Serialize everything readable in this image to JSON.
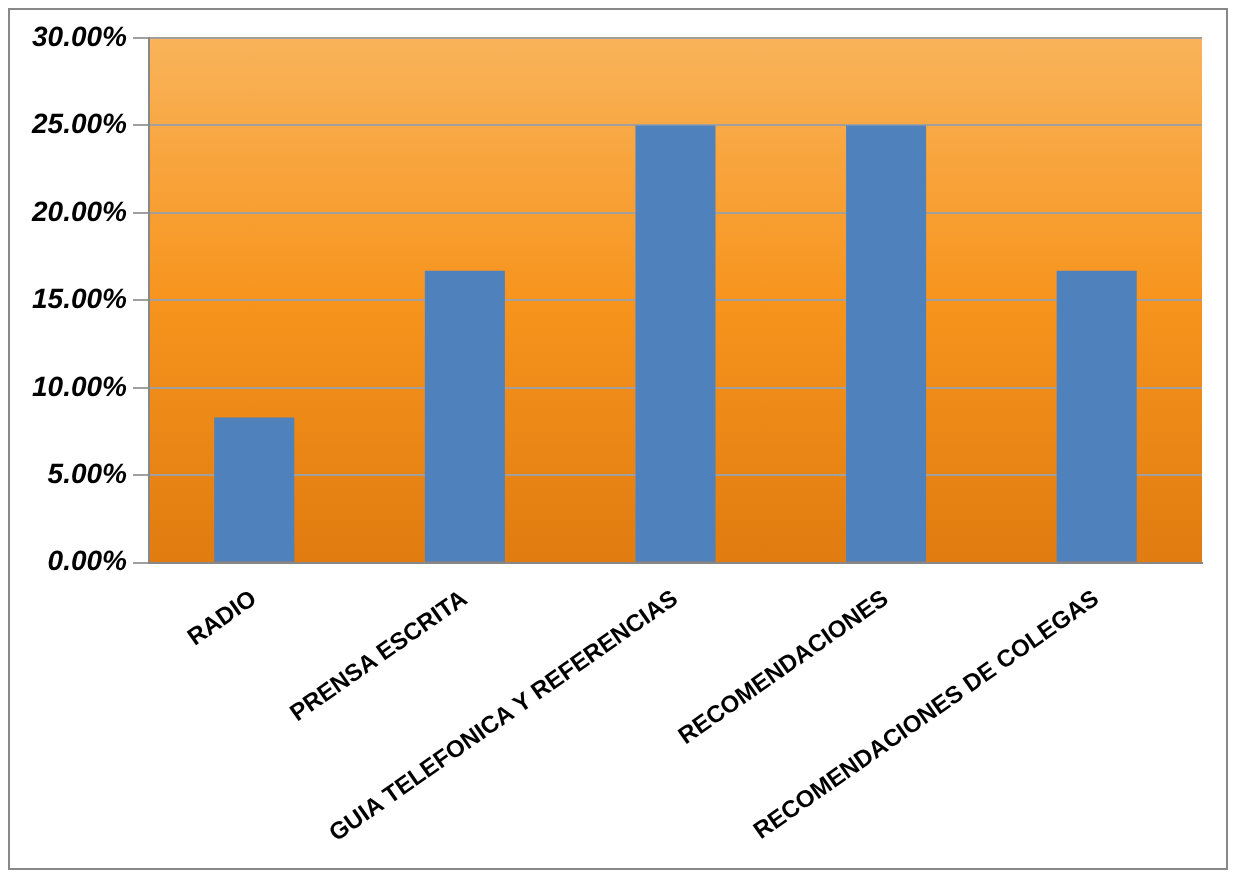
{
  "chart_data": {
    "type": "bar",
    "categories": [
      "RADIO",
      "PRENSA ESCRITA",
      "GUIA TELEFONICA Y REFERENCIAS",
      "RECOMENDACIONES",
      "RECOMENDACIONES DE COLEGAS"
    ],
    "values": [
      8.3,
      16.7,
      25,
      25,
      16.7
    ],
    "color": "#4f81bd",
    "ylim": [
      0,
      30
    ],
    "yticks": [
      {
        "value": 0,
        "label": "0.00%"
      },
      {
        "value": 5,
        "label": "5.00%"
      },
      {
        "value": 10,
        "label": "10.00%"
      },
      {
        "value": 15,
        "label": "15.00%"
      },
      {
        "value": 20,
        "label": "20.00%"
      },
      {
        "value": 25,
        "label": "25.00%"
      },
      {
        "value": 30,
        "label": "30.00%"
      }
    ],
    "grid": "y",
    "legend": false
  }
}
